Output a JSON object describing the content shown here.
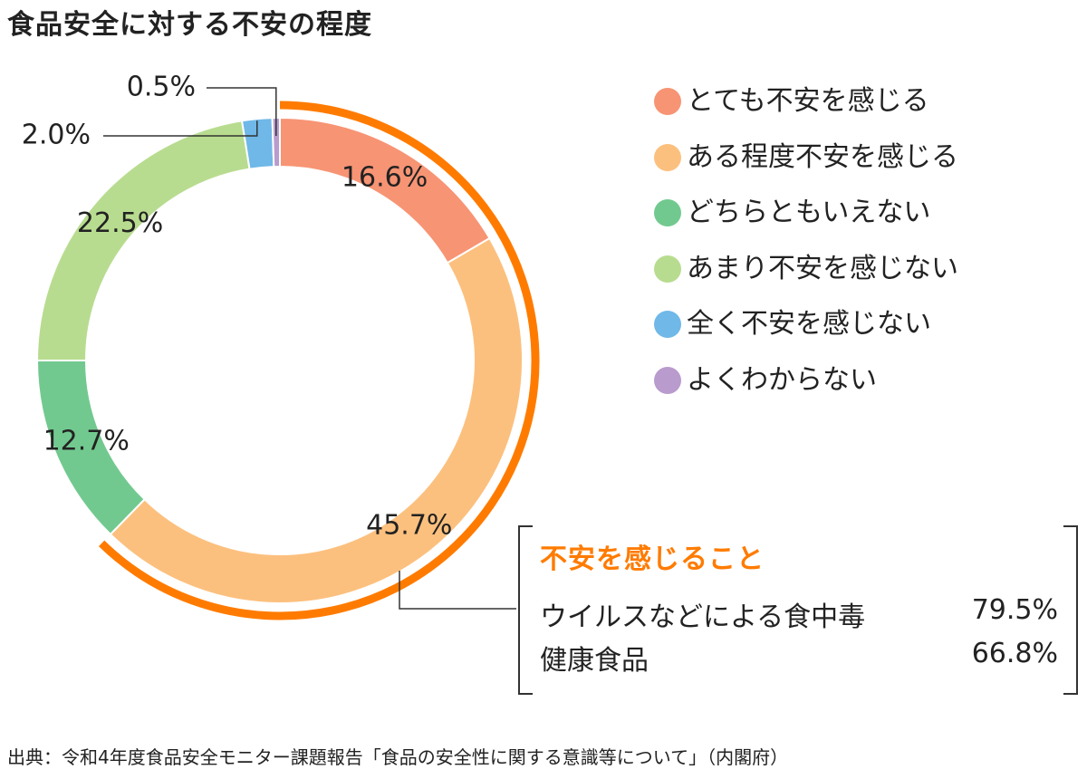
{
  "title": "食品安全に対する不安の程度",
  "chart_data": {
    "type": "pie",
    "variant": "donut",
    "categories": [
      "とても不安を感じる",
      "ある程度不安を感じる",
      "どちらともいえない",
      "あまり不安を感じない",
      "全く不安を感じない",
      "よくわからない"
    ],
    "values": [
      16.6,
      45.7,
      12.7,
      22.5,
      2.0,
      0.5
    ],
    "data_labels": [
      "16.6%",
      "45.7%",
      "12.7%",
      "22.5%",
      "2.0%",
      "0.5%"
    ],
    "colors": [
      "#f79474",
      "#fcc07e",
      "#72c98f",
      "#b8dc8f",
      "#6fb8e8",
      "#b99bcd"
    ],
    "highlight": {
      "categories": [
        "とても不安を感じる",
        "ある程度不安を感じる"
      ],
      "color": "#ff7b00"
    },
    "legend_position": "right"
  },
  "callout": {
    "title": "不安を感じること",
    "rows": [
      {
        "label": "ウイルスなどによる食中毒",
        "value": "79.5%"
      },
      {
        "label": "健康食品",
        "value": "66.8%"
      }
    ]
  },
  "source": "出典：令和4年度食品安全モニター課題報告「食品の安全性に関する意識等について」（内閣府）"
}
